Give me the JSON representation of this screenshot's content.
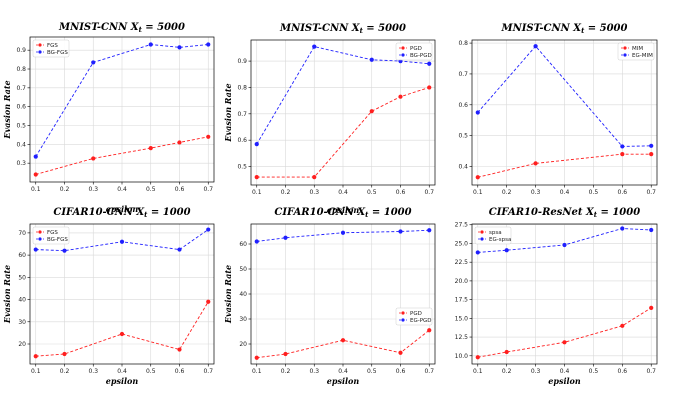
{
  "colors": {
    "red": "#ff1f1f",
    "blue": "#1f1fff",
    "grid": "#d9d9d9"
  },
  "chart_data": [
    {
      "type": "line",
      "title": "MNIST-CNN",
      "subtitle_var": "X",
      "subtitle_sub": "t",
      "subtitle_rest": "= 5000",
      "xlabel": "epsilon",
      "ylabel": "Evasion Rate",
      "x": [
        0.1,
        0.3,
        0.5,
        0.6,
        0.7
      ],
      "series": [
        {
          "name": "FGS",
          "color": "red",
          "values": [
            0.24,
            0.325,
            0.38,
            0.41,
            0.44
          ]
        },
        {
          "name": "BG-FGS",
          "color": "blue",
          "values": [
            0.335,
            0.835,
            0.93,
            0.915,
            0.93
          ]
        }
      ],
      "xlim": [
        0.08,
        0.72
      ],
      "ylim": [
        0.2,
        0.97
      ],
      "xticks": [
        "0.1",
        "0.2",
        "0.3",
        "0.4",
        "0.5",
        "0.6",
        "0.7"
      ],
      "yticks": [
        "0.3",
        "0.4",
        "0.5",
        "0.6",
        "0.7",
        "0.8",
        "0.9"
      ],
      "legend_loc": "top-left",
      "grid": true
    },
    {
      "type": "line",
      "title": "MNIST-CNN",
      "subtitle_var": "X",
      "subtitle_sub": "t",
      "subtitle_rest": "= 5000",
      "xlabel": "epsilon",
      "ylabel": "Evasion Rate",
      "x": [
        0.1,
        0.3,
        0.5,
        0.6,
        0.7
      ],
      "series": [
        {
          "name": "PGD",
          "color": "red",
          "values": [
            0.46,
            0.46,
            0.71,
            0.765,
            0.8
          ]
        },
        {
          "name": "BG-PGD",
          "color": "blue",
          "values": [
            0.585,
            0.955,
            0.905,
            0.9,
            0.89
          ]
        }
      ],
      "xlim": [
        0.08,
        0.72
      ],
      "ylim": [
        0.43,
        0.98
      ],
      "xticks": [
        "0.1",
        "0.2",
        "0.3",
        "0.4",
        "0.5",
        "0.6",
        "0.7"
      ],
      "yticks": [
        "0.5",
        "0.6",
        "0.7",
        "0.8",
        "0.9"
      ],
      "legend_loc": "top-right",
      "grid": true
    },
    {
      "type": "line",
      "title": "MNIST-CNN",
      "subtitle_var": "X",
      "subtitle_sub": "t",
      "subtitle_rest": "= 5000",
      "xlabel": "",
      "ylabel": "",
      "x": [
        0.1,
        0.3,
        0.6,
        0.7
      ],
      "series": [
        {
          "name": "MIM",
          "color": "red",
          "values": [
            0.365,
            0.41,
            0.44,
            0.44
          ]
        },
        {
          "name": "EG-MIM",
          "color": "blue",
          "values": [
            0.575,
            0.79,
            0.465,
            0.467
          ]
        }
      ],
      "xlim": [
        0.08,
        0.72
      ],
      "ylim": [
        0.34,
        0.81
      ],
      "xticks": [
        "0.1",
        "0.2",
        "0.3",
        "0.4",
        "0.5",
        "0.6",
        "0.7"
      ],
      "yticks": [
        "0.4",
        "0.5",
        "0.6",
        "0.7",
        "0.8"
      ],
      "legend_loc": "top-right",
      "grid": true
    },
    {
      "type": "line",
      "title": "CIFAR10-CNN",
      "subtitle_var": "X",
      "subtitle_sub": "t",
      "subtitle_rest": "= 1000",
      "xlabel": "epsilon",
      "ylabel": "Evasion Rate",
      "x": [
        0.1,
        0.2,
        0.4,
        0.6,
        0.7
      ],
      "series": [
        {
          "name": "FGS",
          "color": "red",
          "values": [
            14.5,
            15.5,
            24.5,
            17.5,
            39.0
          ]
        },
        {
          "name": "BG-FGS",
          "color": "blue",
          "values": [
            62.5,
            62.0,
            66.0,
            62.5,
            71.5
          ]
        }
      ],
      "xlim": [
        0.08,
        0.72
      ],
      "ylim": [
        11,
        74
      ],
      "xticks": [
        "0.1",
        "0.2",
        "0.3",
        "0.4",
        "0.5",
        "0.6",
        "0.7"
      ],
      "yticks": [
        "20",
        "30",
        "40",
        "50",
        "60",
        "70"
      ],
      "legend_loc": "top-left",
      "grid": true
    },
    {
      "type": "line",
      "title": "CIFAR10-CNN",
      "subtitle_var": "X",
      "subtitle_sub": "t",
      "subtitle_rest": "= 1000",
      "xlabel": "epsilon",
      "ylabel": "Evasion Rate",
      "x": [
        0.1,
        0.2,
        0.4,
        0.6,
        0.7
      ],
      "series": [
        {
          "name": "PGD",
          "color": "red",
          "values": [
            14.5,
            16.0,
            21.5,
            16.5,
            25.5
          ]
        },
        {
          "name": "EG-PGD",
          "color": "blue",
          "values": [
            61.0,
            62.5,
            64.5,
            65.0,
            65.5
          ]
        }
      ],
      "xlim": [
        0.08,
        0.72
      ],
      "ylim": [
        12,
        68
      ],
      "xticks": [
        "0.1",
        "0.2",
        "0.3",
        "0.4",
        "0.5",
        "0.6",
        "0.7"
      ],
      "yticks": [
        "20",
        "30",
        "40",
        "50",
        "60"
      ],
      "legend_loc": "center-right",
      "grid": true
    },
    {
      "type": "line",
      "title": "CIFAR10-ResNet",
      "subtitle_var": "X",
      "subtitle_sub": "t",
      "subtitle_rest": "= 1000",
      "xlabel": "epsilon",
      "ylabel": "",
      "x": [
        0.1,
        0.2,
        0.4,
        0.6,
        0.7
      ],
      "series": [
        {
          "name": "spsa",
          "color": "red",
          "values": [
            9.8,
            10.5,
            11.8,
            14.0,
            16.4
          ]
        },
        {
          "name": "EG-spsa",
          "color": "blue",
          "values": [
            23.8,
            24.1,
            24.8,
            27.0,
            26.8
          ]
        }
      ],
      "xlim": [
        0.08,
        0.72
      ],
      "ylim": [
        8.9,
        27.6
      ],
      "xticks": [
        "0.1",
        "0.2",
        "0.3",
        "0.4",
        "0.5",
        "0.6",
        "0.7"
      ],
      "yticks": [
        "10.0",
        "12.5",
        "15.0",
        "17.5",
        "20.0",
        "22.5",
        "25.0",
        "27.5"
      ],
      "legend_loc": "top-left",
      "grid": true
    }
  ]
}
